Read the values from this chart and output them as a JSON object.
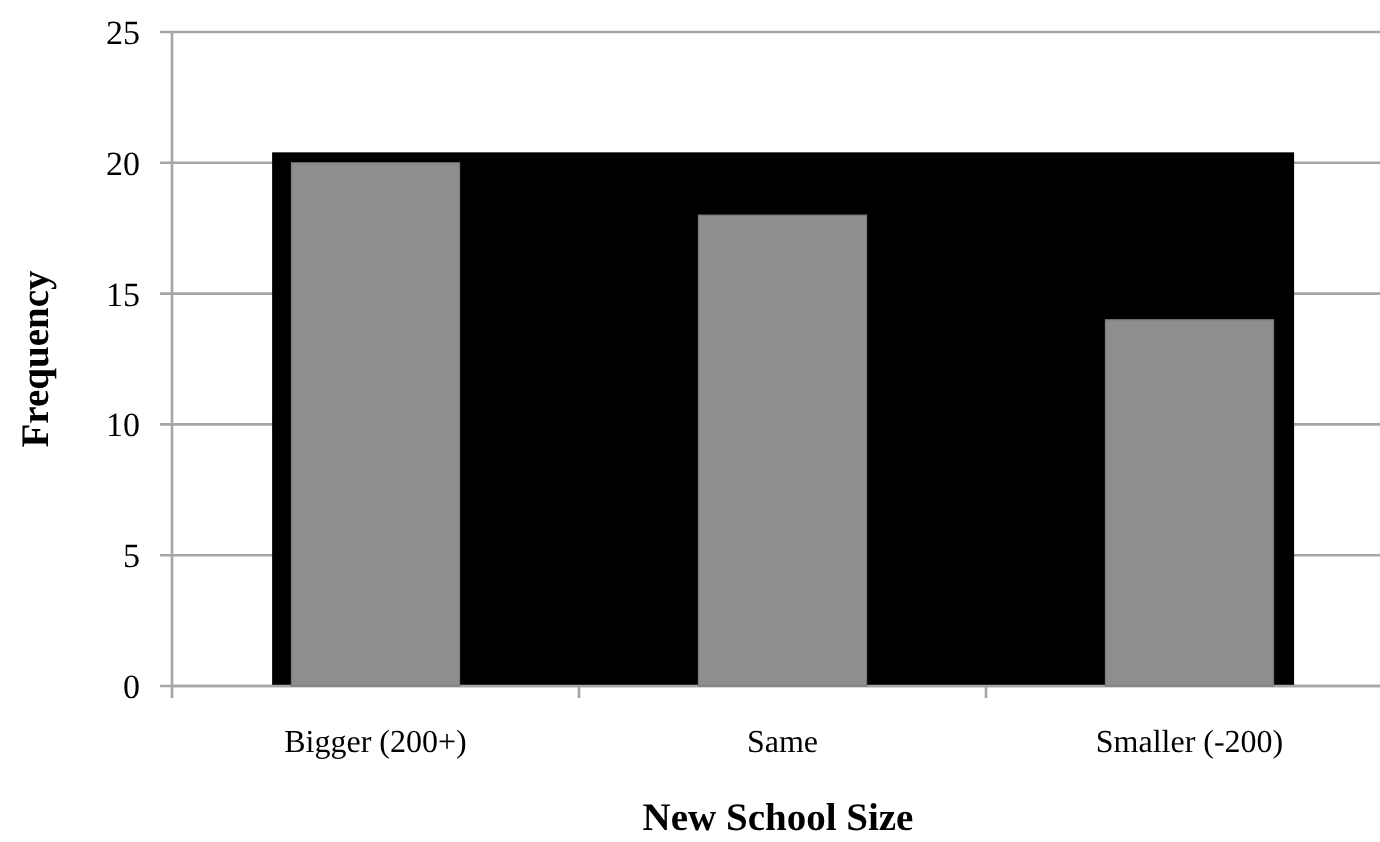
{
  "chart_data": {
    "type": "bar",
    "xlabel": "New School Size",
    "ylabel": "Frequency",
    "categories": [
      "Bigger (200+)",
      "Same",
      "Smaller (-200)"
    ],
    "values": [
      20,
      18,
      14
    ],
    "color": "#8e8e8e",
    "ylim": [
      0,
      25
    ],
    "yticks": [
      0,
      5,
      10,
      15,
      20,
      25
    ],
    "grid": "y",
    "bands": [
      {
        "axis": "y",
        "from": 0,
        "to": 20.4,
        "color": "#000000"
      }
    ]
  }
}
